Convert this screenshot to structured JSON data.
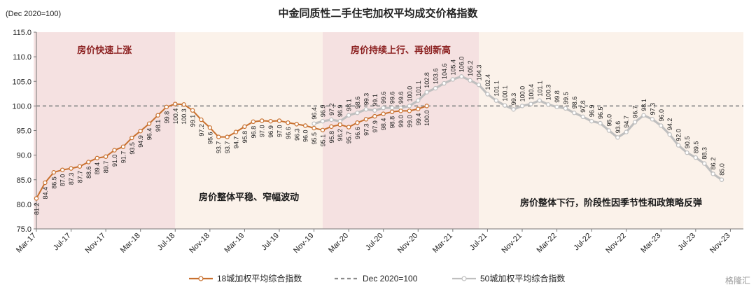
{
  "chart_data": {
    "type": "line",
    "title": "中金同质性二手住宅加权平均成交价格指数",
    "unit_label": "(Dec 2020=100)",
    "ylim": [
      75,
      115
    ],
    "y_ticks": [
      "75.0",
      "80.0",
      "85.0",
      "90.0",
      "95.0",
      "100.0",
      "105.0",
      "110.0",
      "115.0"
    ],
    "x_tick_labels": [
      "Mar-17",
      "Jul-17",
      "Nov-17",
      "Mar-18",
      "Jul-18",
      "Nov-18",
      "Mar-19",
      "Jul-19",
      "Nov-19",
      "Mar-20",
      "Jul-20",
      "Nov-20",
      "Mar-21",
      "Jul-21",
      "Nov-21",
      "Mar-22",
      "Jul-22",
      "Nov-22",
      "Mar-23",
      "Jul-23",
      "Nov-23"
    ],
    "phases": [
      {
        "label": "房价快速上涨",
        "color": "#f5e1e1"
      },
      {
        "label": "房价整体平稳、窄幅波动",
        "color": "#fbf2ea"
      },
      {
        "label": "房价持续上行、再创新高",
        "color": "#f5e1e1"
      },
      {
        "label": "房价整体下行，阶段性因季节性和政策略反弹",
        "color": "#fbf2ea"
      }
    ],
    "reference_line": {
      "name": "Dec 2020=100",
      "value": 100
    },
    "series": [
      {
        "name": "18城加权平均综合指数",
        "color": "#c8702e",
        "start": "Mar-17",
        "values": [
          81.2,
          84.4,
          86.5,
          87.0,
          87.3,
          87.7,
          88.6,
          89.4,
          89.7,
          91.0,
          91.7,
          93.5,
          94.9,
          96.4,
          98.1,
          99.8,
          100.4,
          100.3,
          99.1,
          97.2,
          95.6,
          93.7,
          93.7,
          94.7,
          95.8,
          96.8,
          97.0,
          96.9,
          97.0,
          96.6,
          96.3,
          96.0,
          95.5,
          95.1,
          95.8,
          96.2,
          95.7,
          96.6,
          97.3,
          97.9,
          98.4,
          98.8,
          99.0,
          99.0,
          99.4,
          100.0
        ]
      },
      {
        "name": "50城加权平均综合指数",
        "color": "#bfbfbf",
        "start": "Nov-19",
        "values": [
          96.4,
          96.9,
          97.2,
          96.9,
          98.1,
          98.6,
          99.3,
          99.1,
          99.6,
          99.6,
          99.6,
          100.0,
          101.1,
          102.8,
          103.6,
          104.6,
          105.4,
          106.0,
          105.2,
          104.3,
          102.4,
          101.1,
          100.1,
          99.3,
          100.0,
          100.4,
          101.1,
          100.3,
          99.8,
          99.5,
          98.6,
          97.8,
          96.9,
          96.5,
          95.0,
          93.6,
          94.7,
          96.7,
          98.1,
          97.3,
          96.0,
          94.2,
          92.0,
          90.5,
          89.5,
          88.3,
          86.2,
          85.0
        ]
      }
    ],
    "legend_position": "bottom"
  },
  "watermark": "格隆汇"
}
